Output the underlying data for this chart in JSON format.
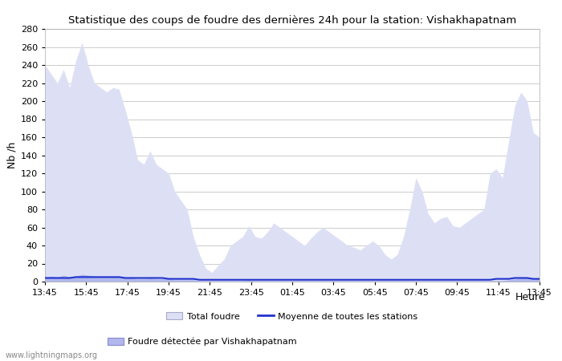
{
  "title": "Statistique des coups de foudre des dernières 24h pour la station: Vishakhapatnam",
  "xlabel": "Heure",
  "ylabel": "Nb /h",
  "xlim_labels": [
    "13:45",
    "15:45",
    "17:45",
    "19:45",
    "21:45",
    "23:45",
    "01:45",
    "03:45",
    "05:45",
    "07:45",
    "09:45",
    "11:45",
    "13:45"
  ],
  "ylim": [
    0,
    280
  ],
  "yticks": [
    0,
    20,
    40,
    60,
    80,
    100,
    120,
    140,
    160,
    180,
    200,
    220,
    240,
    260,
    280
  ],
  "bg_color": "#ffffff",
  "plot_bg_color": "#ffffff",
  "grid_color": "#cccccc",
  "fill_total_color": "#dde0f5",
  "fill_station_color": "#b0b8ee",
  "line_color": "#2233cc",
  "watermark": "www.lightningmaps.org",
  "legend_total": "Total foudre",
  "legend_station": "Foudre détectée par Vishakhapatnam",
  "legend_mean": "Moyenne de toutes les stations",
  "total_foudre": [
    240,
    230,
    220,
    235,
    215,
    245,
    265,
    240,
    220,
    215,
    210,
    215,
    213,
    190,
    165,
    135,
    130,
    145,
    130,
    125,
    120,
    100,
    90,
    80,
    50,
    30,
    15,
    10,
    18,
    25,
    40,
    45,
    50,
    62,
    50,
    48,
    55,
    65,
    60,
    55,
    50,
    45,
    40,
    48,
    55,
    60,
    55,
    50,
    45,
    40,
    38,
    35,
    40,
    45,
    40,
    30,
    25,
    30,
    50,
    80,
    115,
    100,
    75,
    65,
    70,
    72,
    62,
    60,
    65,
    70,
    75,
    80,
    120,
    125,
    115,
    155,
    195,
    210,
    200,
    165,
    160
  ],
  "station_foudre": [
    5,
    6,
    5,
    7,
    5,
    6,
    8,
    7,
    6,
    5,
    6,
    5,
    5,
    5,
    4,
    3,
    3,
    4,
    3,
    3,
    3,
    2,
    2,
    2,
    2,
    1,
    1,
    1,
    1,
    1,
    1,
    1,
    1,
    2,
    1,
    1,
    1,
    1,
    1,
    1,
    1,
    1,
    1,
    1,
    1,
    1,
    1,
    1,
    1,
    1,
    1,
    1,
    1,
    1,
    1,
    1,
    1,
    1,
    1,
    1,
    1,
    1,
    1,
    1,
    1,
    1,
    1,
    1,
    1,
    1,
    1,
    1,
    1,
    1,
    1,
    2,
    3,
    4,
    4,
    3,
    3
  ],
  "mean_line": [
    4,
    4,
    4,
    4,
    4,
    5,
    5,
    5,
    5,
    5,
    5,
    5,
    5,
    4,
    4,
    4,
    4,
    4,
    4,
    4,
    3,
    3,
    3,
    3,
    3,
    2,
    2,
    2,
    2,
    2,
    2,
    2,
    2,
    2,
    2,
    2,
    2,
    2,
    2,
    2,
    2,
    2,
    2,
    2,
    2,
    2,
    2,
    2,
    2,
    2,
    2,
    2,
    2,
    2,
    2,
    2,
    2,
    2,
    2,
    2,
    2,
    2,
    2,
    2,
    2,
    2,
    2,
    2,
    2,
    2,
    2,
    2,
    2,
    3,
    3,
    3,
    4,
    4,
    4,
    3,
    3
  ]
}
